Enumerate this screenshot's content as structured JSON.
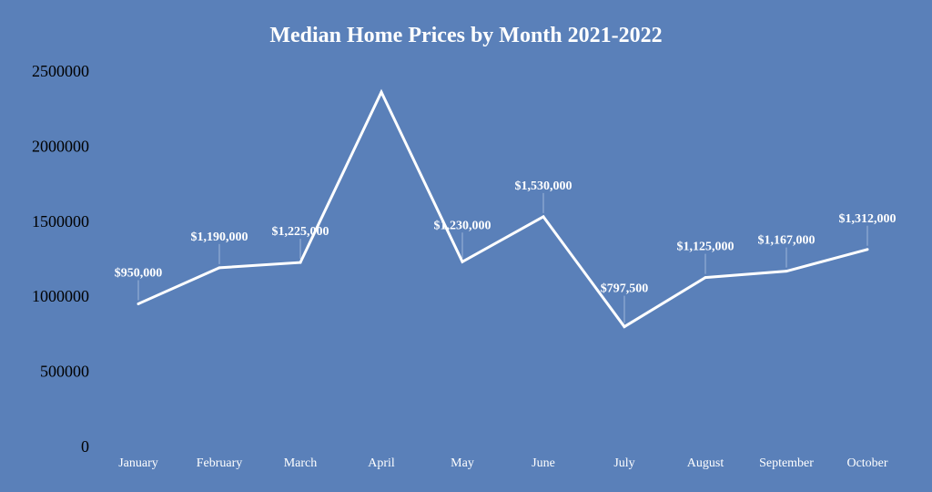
{
  "chart_data": {
    "type": "line",
    "title": "Median Home Prices by Month 2021-2022",
    "xlabel": "",
    "ylabel": "",
    "categories": [
      "January",
      "February",
      "March",
      "April",
      "May",
      "June",
      "July",
      "August",
      "September",
      "October"
    ],
    "series": [
      {
        "values": [
          950000,
          1190000,
          1225000,
          2360000,
          1230000,
          1530000,
          797500,
          1125000,
          1167000,
          1312000
        ],
        "labels": [
          "$950,000",
          "$1,190,000",
          "$1,225,000",
          "",
          "$1,230,000",
          "$1,530,000",
          "$797,500",
          "$1,125,000",
          "$1,167,000",
          "$1,312,000"
        ],
        "color": "#ffffff"
      }
    ],
    "ylim": [
      0,
      2500000
    ],
    "yticks": [
      "0",
      "500000",
      "1000000",
      "1500000",
      "2000000",
      "2500000"
    ],
    "grid": false,
    "legend": "none",
    "background": "#5a80b9"
  }
}
